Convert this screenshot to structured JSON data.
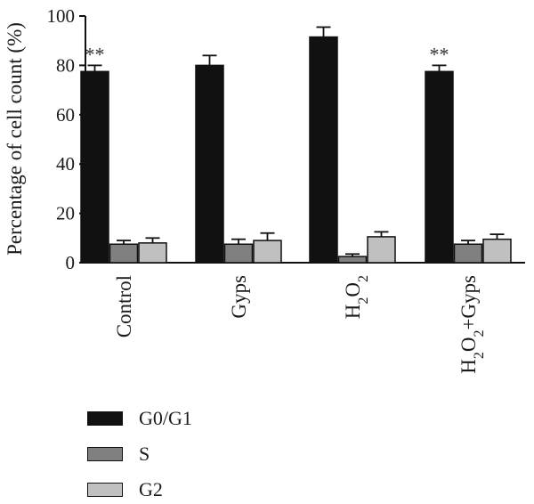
{
  "chart_data": {
    "type": "bar",
    "ylabel": "Percentage of cell count (%)",
    "ylim": [
      0,
      100
    ],
    "yticks": [
      0,
      20,
      40,
      60,
      80,
      100
    ],
    "categories": [
      "Control",
      "Gyps",
      "H2O2",
      "H2O2+Gyps"
    ],
    "series": [
      {
        "name": "G0/G1",
        "color": "#111111",
        "values": [
          77.5,
          80.0,
          91.5,
          77.5
        ],
        "errors": [
          2.5,
          4.0,
          4.0,
          2.5
        ]
      },
      {
        "name": "S",
        "color": "#808080",
        "values": [
          7.5,
          7.5,
          2.5,
          7.5
        ],
        "errors": [
          1.5,
          2.0,
          1.0,
          1.5
        ]
      },
      {
        "name": "G2",
        "color": "#c0c0c0",
        "values": [
          8.0,
          9.0,
          10.5,
          9.5
        ],
        "errors": [
          2.0,
          3.0,
          2.0,
          2.0
        ]
      }
    ],
    "annotations": [
      "**",
      "",
      "",
      "**"
    ],
    "grid": false,
    "legend_position": "bottom-left"
  }
}
